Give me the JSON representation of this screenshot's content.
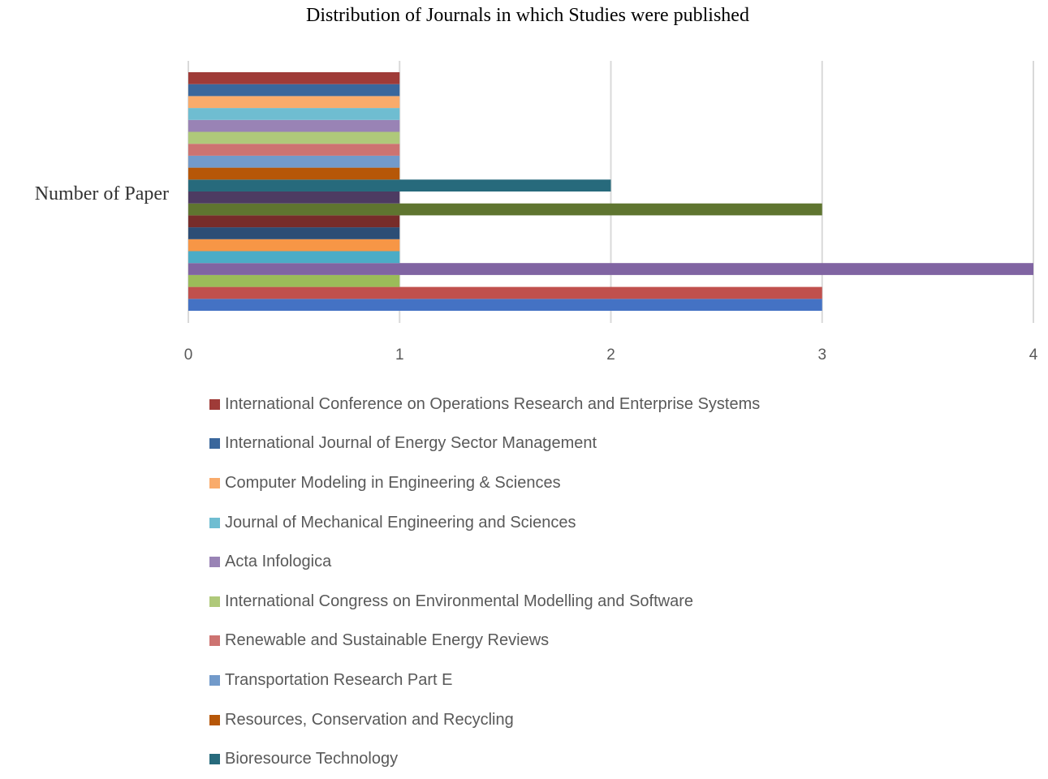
{
  "chart_data": {
    "type": "bar",
    "orientation": "horizontal",
    "title": "Distribution of Journals in which Studies were published",
    "categories": [
      "Number of Paper"
    ],
    "xlim": [
      0,
      4
    ],
    "xticks": [
      0,
      1,
      2,
      3,
      4
    ],
    "grid": true,
    "legend_position": "bottom",
    "series": [
      {
        "name": "",
        "value": 3,
        "color": "#4472C4"
      },
      {
        "name": "",
        "value": 3,
        "color": "#C0504D"
      },
      {
        "name": "",
        "value": 1,
        "color": "#9BBB59"
      },
      {
        "name": "",
        "value": 4,
        "color": "#8064A2"
      },
      {
        "name": "",
        "value": 1,
        "color": "#4BACC6"
      },
      {
        "name": "",
        "value": 1,
        "color": "#F79646"
      },
      {
        "name": "",
        "value": 1,
        "color": "#2C4D75"
      },
      {
        "name": "",
        "value": 1,
        "color": "#772C2A"
      },
      {
        "name": "",
        "value": 3,
        "color": "#5F7530"
      },
      {
        "name": "",
        "value": 1,
        "color": "#4D3B62"
      },
      {
        "name": "Bioresource Technology",
        "value": 2,
        "color": "#276A7C"
      },
      {
        "name": "Resources, Conservation and Recycling",
        "value": 1,
        "color": "#B65708"
      },
      {
        "name": "Transportation Research Part E",
        "value": 1,
        "color": "#729ACA"
      },
      {
        "name": "Renewable and Sustainable Energy Reviews",
        "value": 1,
        "color": "#CD7371"
      },
      {
        "name": "International Congress on Environmental Modelling and Software",
        "value": 1,
        "color": "#AFC97A"
      },
      {
        "name": "Acta Infologica",
        "value": 1,
        "color": "#9983B5"
      },
      {
        "name": "Journal of Mechanical Engineering and Sciences",
        "value": 1,
        "color": "#6FBDD1"
      },
      {
        "name": "Computer Modeling in Engineering & Sciences",
        "value": 1,
        "color": "#F9AB6B"
      },
      {
        "name": "International Journal of Energy Sector Management",
        "value": 1,
        "color": "#3A679C"
      },
      {
        "name": "International Conference on Operations Research and Enterprise Systems",
        "value": 1,
        "color": "#9F3B38"
      }
    ]
  }
}
